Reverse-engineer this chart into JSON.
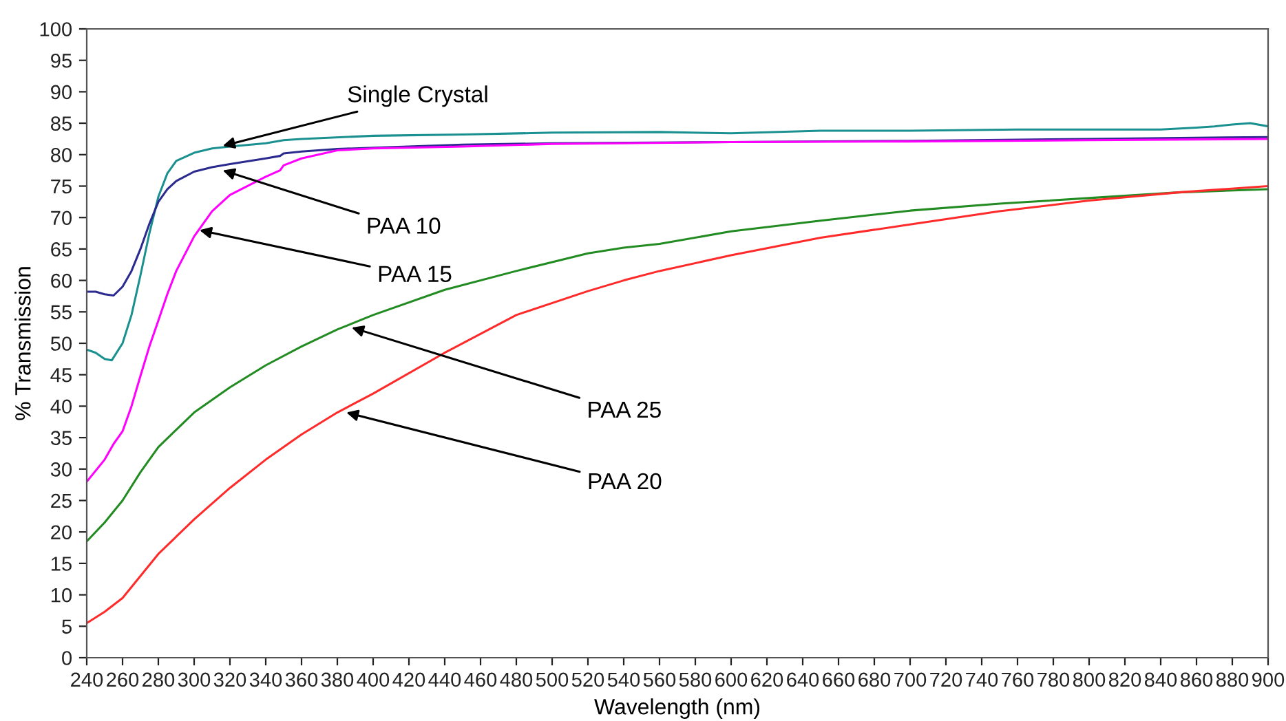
{
  "chart_data": {
    "type": "line",
    "xlabel": "Wavelength (nm)",
    "ylabel": "% Transmission",
    "xlim": [
      240,
      900
    ],
    "xticks": [
      240,
      260,
      280,
      300,
      320,
      340,
      360,
      380,
      400,
      420,
      440,
      460,
      480,
      500,
      520,
      540,
      560,
      580,
      600,
      620,
      640,
      660,
      680,
      700,
      720,
      740,
      760,
      780,
      800,
      820,
      840,
      860,
      880,
      900
    ],
    "ylim": [
      0,
      100
    ],
    "yticks": [
      0,
      5,
      10,
      15,
      20,
      25,
      30,
      35,
      40,
      45,
      50,
      55,
      60,
      65,
      70,
      75,
      80,
      85,
      90,
      95,
      100
    ],
    "grid": false,
    "legend": false,
    "marker": "none",
    "line_style": "solid",
    "series": [
      {
        "color": "#1a9090",
        "x": [
          240,
          245,
          250,
          254,
          260,
          265,
          270,
          275,
          280,
          285,
          290,
          300,
          310,
          320,
          340,
          350,
          360,
          400,
          450,
          500,
          560,
          600,
          650,
          700,
          760,
          800,
          840,
          860,
          870,
          880,
          890,
          900
        ],
        "values": [
          49,
          48.5,
          47.5,
          47.3,
          50,
          54.5,
          60.8,
          67.5,
          73.3,
          77,
          79,
          80.3,
          81,
          81.3,
          81.8,
          82.3,
          82.5,
          83,
          83.2,
          83.5,
          83.6,
          83.4,
          83.8,
          83.8,
          84,
          84,
          84,
          84.3,
          84.5,
          84.8,
          85,
          84.5
        ]
      },
      {
        "color": "#2b2b8f",
        "x": [
          240,
          245,
          250,
          255,
          260,
          265,
          270,
          275,
          280,
          285,
          290,
          300,
          310,
          320,
          340,
          348,
          350,
          360,
          380,
          400,
          450,
          500,
          600,
          700,
          800,
          900
        ],
        "values": [
          58.2,
          58.2,
          57.8,
          57.6,
          59,
          61.5,
          65,
          69,
          72.5,
          74.5,
          75.8,
          77.3,
          78,
          78.5,
          79.4,
          79.8,
          80.2,
          80.5,
          80.9,
          81.1,
          81.6,
          81.8,
          82,
          82.2,
          82.5,
          82.8
        ]
      },
      {
        "color": "#ff00ff",
        "x": [
          240,
          250,
          255,
          260,
          265,
          270,
          275,
          280,
          285,
          290,
          300,
          310,
          320,
          340,
          348,
          350,
          360,
          380,
          400,
          450,
          500,
          600,
          700,
          800,
          900
        ],
        "values": [
          28,
          31.5,
          34,
          36,
          40,
          44.8,
          49.5,
          53.6,
          57.8,
          61.5,
          67,
          71,
          73.6,
          76.5,
          77.5,
          78.3,
          79.4,
          80.7,
          81,
          81.3,
          81.7,
          82,
          82.1,
          82.3,
          82.5
        ]
      },
      {
        "color": "#228b22",
        "x": [
          240,
          250,
          260,
          270,
          280,
          300,
          320,
          340,
          360,
          380,
          400,
          440,
          480,
          520,
          540,
          560,
          600,
          650,
          700,
          750,
          800,
          850,
          900
        ],
        "values": [
          18.5,
          21.5,
          25,
          29.5,
          33.5,
          39,
          43,
          46.5,
          49.5,
          52.2,
          54.5,
          58.5,
          61.5,
          64.3,
          65.2,
          65.8,
          67.8,
          69.5,
          71.1,
          72.2,
          73.1,
          74,
          74.5
        ]
      },
      {
        "color": "#ff2a2a",
        "x": [
          240,
          250,
          260,
          270,
          280,
          300,
          320,
          340,
          360,
          380,
          400,
          440,
          480,
          520,
          540,
          560,
          600,
          650,
          700,
          750,
          800,
          850,
          900
        ],
        "values": [
          5.5,
          7.3,
          9.5,
          13,
          16.5,
          22,
          27,
          31.5,
          35.5,
          39,
          42,
          48.5,
          54.5,
          58.3,
          60,
          61.5,
          64,
          66.8,
          68.9,
          71,
          72.7,
          74,
          75
        ]
      }
    ],
    "annotations": [
      {
        "text": "Single Crystal",
        "x": 316,
        "y": 81.4
      },
      {
        "text": "PAA 10",
        "x": 316,
        "y": 77.5
      },
      {
        "text": "PAA 15",
        "x": 303,
        "y": 68
      },
      {
        "text": "PAA 25",
        "x": 388,
        "y": 52.5
      },
      {
        "text": "PAA 20",
        "x": 385,
        "y": 39
      }
    ]
  }
}
